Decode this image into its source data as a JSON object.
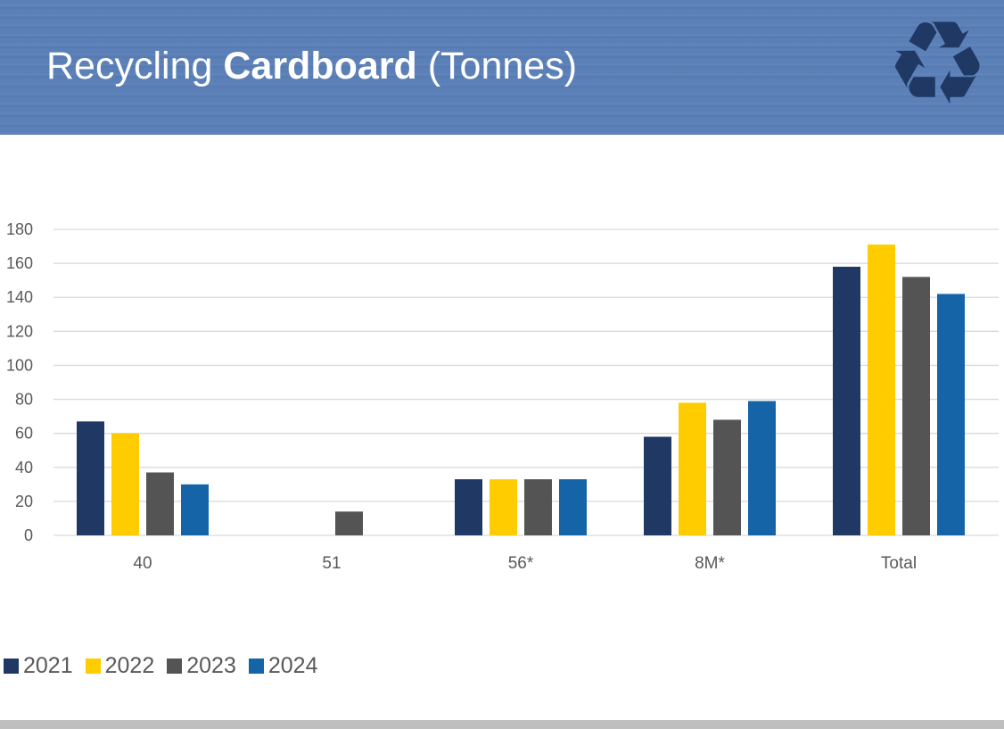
{
  "header": {
    "title_pre": "Recycling ",
    "title_bold": "Cardboard",
    "title_post": " (Tonnes)",
    "icon": "recycle-icon"
  },
  "chart_data": {
    "type": "bar",
    "title": "Recycling Cardboard (Tonnes)",
    "categories": [
      "40",
      "51",
      "56*",
      "8M*",
      "Total"
    ],
    "series": [
      {
        "name": "2021",
        "color": "#1f3864",
        "values": [
          67,
          0,
          33,
          58,
          158
        ]
      },
      {
        "name": "2022",
        "color": "#ffcc00",
        "values": [
          60,
          0,
          33,
          78,
          171
        ]
      },
      {
        "name": "2023",
        "color": "#545454",
        "values": [
          37,
          14,
          33,
          68,
          152
        ]
      },
      {
        "name": "2024",
        "color": "#1664a8",
        "values": [
          30,
          0,
          33,
          79,
          142
        ]
      }
    ],
    "ylim": [
      0,
      180
    ],
    "yticks": [
      "0",
      "20",
      "40",
      "60",
      "80",
      "100",
      "120",
      "140",
      "160",
      "180"
    ],
    "grid": true,
    "legend": "bottom-left",
    "xlabel": "",
    "ylabel": ""
  }
}
